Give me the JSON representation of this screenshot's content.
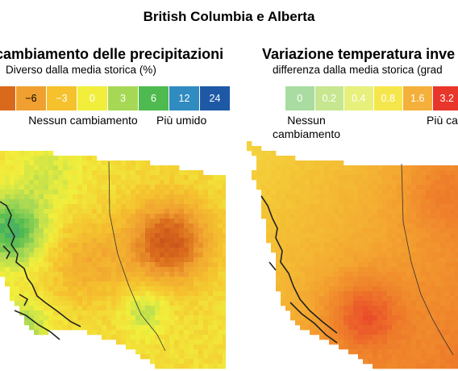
{
  "title": "British Columbia e Alberta",
  "panels": [
    {
      "title": "cambiamento delle precipitazioni",
      "subtitle": "Diverso dalla media storica (%)",
      "legend": {
        "labels": [
          "",
          "−6",
          "−3",
          "0",
          "3",
          "6",
          "12",
          "24"
        ],
        "colors": [
          "#d96a1c",
          "#f0a030",
          "#f5c22e",
          "#f1ef3c",
          "#a6d855",
          "#4fba4f",
          "#2f8bc0",
          "#1e59a6"
        ],
        "text_colors": [
          "#ffffff",
          "#000000",
          "#ffffff",
          "#ffffff",
          "#ffffff",
          "#ffffff",
          "#ffffff",
          "#ffffff"
        ]
      },
      "note_left": "Nessun cambiamento",
      "note_right": "Più umido"
    },
    {
      "title": "Variazione temperatura inve",
      "subtitle": "differenza dalla media storica (grad",
      "legend": {
        "labels": [
          "0",
          "0.2",
          "0.4",
          "0.8",
          "1.6",
          "3.2"
        ],
        "colors": [
          "#a8dca0",
          "#c6e690",
          "#e6f07a",
          "#f5e64c",
          "#f4b03a",
          "#e8362a"
        ],
        "text_colors": [
          "#ffffff",
          "#ffffff",
          "#ffffff",
          "#ffffff",
          "#ffffff",
          "#ffffff"
        ]
      },
      "note_left": "Nessun cambiamento",
      "note_right": "Più ca"
    }
  ]
}
